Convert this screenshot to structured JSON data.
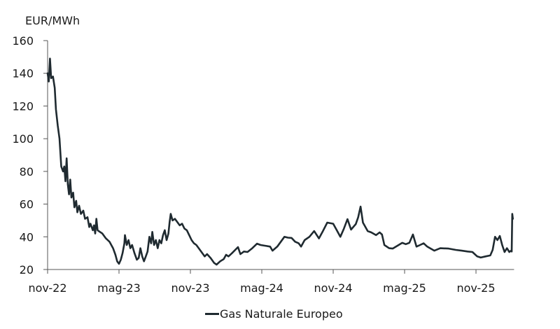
{
  "chart_data": {
    "type": "line",
    "title": "",
    "ylabel": "EUR/MWh",
    "xlabel": "",
    "ylim": [
      20,
      160
    ],
    "yticks": [
      20,
      40,
      60,
      80,
      100,
      120,
      140,
      160
    ],
    "xticks": [
      "nov-22",
      "mag-23",
      "nov-23",
      "mag-24",
      "nov-24",
      "mag-25",
      "nov-25"
    ],
    "xtick_month_index": [
      0,
      6,
      12,
      18,
      24,
      30,
      36
    ],
    "x_axis_end_month_index": 39.2,
    "grid": false,
    "legend_position": "bottom-center",
    "series": [
      {
        "name": "Gas Naturale Europeo",
        "color": "#1f2a30",
        "x_unit": "months since nov-22",
        "points": [
          [
            0.0,
            140
          ],
          [
            0.1,
            135
          ],
          [
            0.2,
            149
          ],
          [
            0.3,
            137
          ],
          [
            0.45,
            138
          ],
          [
            0.6,
            131
          ],
          [
            0.7,
            118
          ],
          [
            0.85,
            108
          ],
          [
            1.0,
            100
          ],
          [
            1.15,
            83
          ],
          [
            1.3,
            80
          ],
          [
            1.4,
            83
          ],
          [
            1.5,
            74
          ],
          [
            1.6,
            88
          ],
          [
            1.7,
            72
          ],
          [
            1.8,
            66
          ],
          [
            1.9,
            75
          ],
          [
            2.0,
            64
          ],
          [
            2.15,
            67
          ],
          [
            2.25,
            58
          ],
          [
            2.4,
            62
          ],
          [
            2.5,
            55
          ],
          [
            2.65,
            59
          ],
          [
            2.8,
            54
          ],
          [
            3.0,
            56
          ],
          [
            3.15,
            51
          ],
          [
            3.35,
            52
          ],
          [
            3.5,
            46
          ],
          [
            3.6,
            48
          ],
          [
            3.8,
            44
          ],
          [
            3.9,
            47
          ],
          [
            4.0,
            42
          ],
          [
            4.1,
            51
          ],
          [
            4.2,
            44
          ],
          [
            4.4,
            43
          ],
          [
            4.6,
            42
          ],
          [
            4.9,
            39
          ],
          [
            5.2,
            37
          ],
          [
            5.5,
            33
          ],
          [
            5.7,
            29
          ],
          [
            5.85,
            25
          ],
          [
            6.0,
            23.5
          ],
          [
            6.15,
            26
          ],
          [
            6.3,
            30
          ],
          [
            6.45,
            36
          ],
          [
            6.5,
            41
          ],
          [
            6.65,
            35
          ],
          [
            6.8,
            38
          ],
          [
            6.95,
            33
          ],
          [
            7.1,
            35
          ],
          [
            7.3,
            30
          ],
          [
            7.5,
            26
          ],
          [
            7.65,
            27
          ],
          [
            7.8,
            33
          ],
          [
            7.95,
            28
          ],
          [
            8.1,
            25
          ],
          [
            8.25,
            28
          ],
          [
            8.4,
            31
          ],
          [
            8.55,
            40
          ],
          [
            8.7,
            36
          ],
          [
            8.8,
            43
          ],
          [
            8.95,
            35
          ],
          [
            9.1,
            38
          ],
          [
            9.25,
            33
          ],
          [
            9.4,
            38
          ],
          [
            9.55,
            36
          ],
          [
            9.7,
            41
          ],
          [
            9.85,
            44
          ],
          [
            10.0,
            38
          ],
          [
            10.15,
            42
          ],
          [
            10.25,
            49
          ],
          [
            10.35,
            54
          ],
          [
            10.5,
            50
          ],
          [
            10.7,
            51
          ],
          [
            10.9,
            49
          ],
          [
            11.1,
            47
          ],
          [
            11.3,
            48
          ],
          [
            11.5,
            45
          ],
          [
            11.7,
            44
          ],
          [
            11.9,
            41
          ],
          [
            12.1,
            38
          ],
          [
            12.3,
            36
          ],
          [
            12.5,
            35
          ],
          [
            12.7,
            33
          ],
          [
            13.0,
            30
          ],
          [
            13.2,
            28
          ],
          [
            13.4,
            29.4
          ],
          [
            13.7,
            27
          ],
          [
            14.0,
            24
          ],
          [
            14.2,
            23
          ],
          [
            14.5,
            25
          ],
          [
            14.8,
            26.4
          ],
          [
            15.0,
            29
          ],
          [
            15.2,
            28
          ],
          [
            15.5,
            30
          ],
          [
            16.0,
            33.7
          ],
          [
            16.2,
            29.4
          ],
          [
            16.5,
            31
          ],
          [
            16.8,
            30.7
          ],
          [
            17.2,
            33
          ],
          [
            17.6,
            35.8
          ],
          [
            17.9,
            35
          ],
          [
            18.3,
            34.5
          ],
          [
            18.7,
            34
          ],
          [
            18.9,
            31.5
          ],
          [
            19.3,
            34
          ],
          [
            19.6,
            37
          ],
          [
            19.9,
            40
          ],
          [
            20.2,
            39.5
          ],
          [
            20.5,
            39.3
          ],
          [
            20.8,
            37
          ],
          [
            21.1,
            36
          ],
          [
            21.3,
            34
          ],
          [
            21.6,
            38
          ],
          [
            22.0,
            40
          ],
          [
            22.4,
            43.5
          ],
          [
            22.8,
            39
          ],
          [
            23.1,
            43
          ],
          [
            23.5,
            48.7
          ],
          [
            24.0,
            48
          ],
          [
            24.3,
            44
          ],
          [
            24.6,
            40
          ],
          [
            24.9,
            45
          ],
          [
            25.2,
            50.8
          ],
          [
            25.5,
            44.4
          ],
          [
            25.9,
            47.8
          ],
          [
            26.1,
            52
          ],
          [
            26.3,
            58.5
          ],
          [
            26.5,
            48.7
          ],
          [
            26.9,
            43.5
          ],
          [
            27.2,
            42.7
          ],
          [
            27.6,
            41
          ],
          [
            27.9,
            42.7
          ],
          [
            28.1,
            41.4
          ],
          [
            28.3,
            35
          ],
          [
            28.7,
            33
          ],
          [
            29.0,
            32.8
          ],
          [
            29.5,
            35
          ],
          [
            29.8,
            36.3
          ],
          [
            30.1,
            35.5
          ],
          [
            30.4,
            36.3
          ],
          [
            30.7,
            41.4
          ],
          [
            31.0,
            34
          ],
          [
            31.3,
            35
          ],
          [
            31.6,
            36
          ],
          [
            31.9,
            34
          ],
          [
            32.5,
            31.5
          ],
          [
            33.0,
            33
          ],
          [
            33.7,
            32.8
          ],
          [
            34.3,
            32
          ],
          [
            34.8,
            31.5
          ],
          [
            35.3,
            31
          ],
          [
            35.7,
            30.7
          ],
          [
            36.1,
            28
          ],
          [
            36.4,
            27.3
          ],
          [
            36.8,
            28
          ],
          [
            37.2,
            28.6
          ],
          [
            37.4,
            32
          ],
          [
            37.6,
            40
          ],
          [
            37.8,
            38
          ],
          [
            38.0,
            40.5
          ],
          [
            38.2,
            35
          ],
          [
            38.4,
            30.7
          ],
          [
            38.6,
            33
          ],
          [
            38.8,
            30.7
          ],
          [
            38.95,
            31.5
          ],
          [
            39.0,
            31
          ],
          [
            39.05,
            54
          ],
          [
            39.1,
            51
          ]
        ]
      }
    ]
  },
  "axis": {
    "y_unit_label": "EUR/MWh"
  },
  "legend": {
    "items": [
      {
        "label": "Gas Naturale Europeo",
        "color": "#1f2a30"
      }
    ]
  }
}
